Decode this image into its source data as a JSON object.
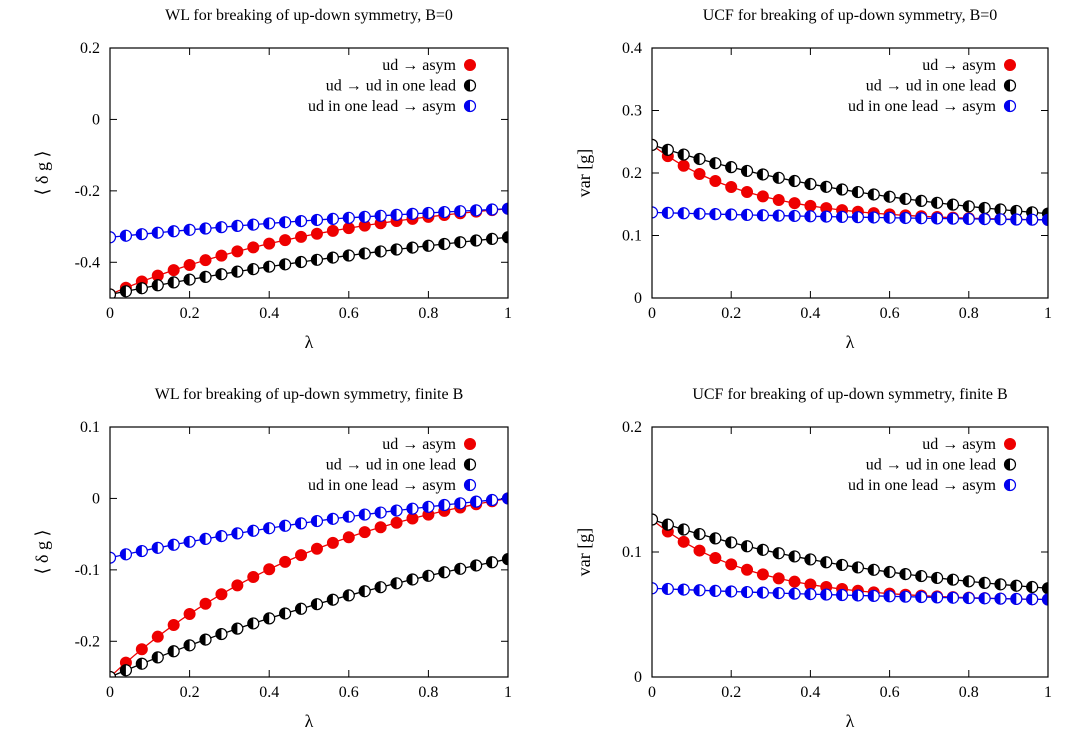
{
  "chart_data": [
    {
      "type": "scatter",
      "title": "WL for breaking of up-down symmetry, B=0",
      "xlabel": "λ",
      "ylabel": "⟨ δ g ⟩",
      "xlim": [
        0,
        1
      ],
      "ylim": [
        -0.5,
        0.2
      ],
      "xticks": [
        "0",
        "0.2",
        "0.4",
        "0.6",
        "0.8",
        "1"
      ],
      "yticks": [
        "-0.4",
        "-0.2",
        "0",
        "0.2"
      ],
      "ytick_values": [
        -0.4,
        -0.2,
        0,
        0.2
      ],
      "grid": false,
      "legend": "top-right",
      "series": [
        {
          "name": "ud → asym",
          "marker": "filled",
          "color": "#ee0000",
          "start": -0.49,
          "end": -0.25,
          "curve": 1.6
        },
        {
          "name": "ud → ud in one lead",
          "marker": "half",
          "color": "#000000",
          "start": -0.49,
          "end": -0.33,
          "curve": 0.7
        },
        {
          "name": "ud in one lead → asym",
          "marker": "half",
          "color": "#0000ee",
          "start": -0.33,
          "end": -0.25,
          "curve": 0.7
        }
      ]
    },
    {
      "type": "scatter",
      "title": "UCF for breaking of up-down symmetry, B=0",
      "xlabel": "λ",
      "ylabel": "var [g]",
      "xlim": [
        0,
        1
      ],
      "ylim": [
        0,
        0.4
      ],
      "xticks": [
        "0",
        "0.2",
        "0.4",
        "0.6",
        "0.8",
        "1"
      ],
      "yticks": [
        "0",
        "0.1",
        "0.2",
        "0.3",
        "0.4"
      ],
      "ytick_values": [
        0,
        0.1,
        0.2,
        0.3,
        0.4
      ],
      "grid": false,
      "legend": "top-right",
      "series": [
        {
          "name": "ud → asym",
          "marker": "filled",
          "color": "#ee0000",
          "start": 0.245,
          "end": 0.125,
          "curve": 4.0
        },
        {
          "name": "ud → ud in one lead",
          "marker": "half",
          "color": "#000000",
          "start": 0.245,
          "end": 0.135,
          "curve": 1.4
        },
        {
          "name": "ud in one lead → asym",
          "marker": "half",
          "color": "#0000ee",
          "start": 0.137,
          "end": 0.125,
          "curve": 1.0
        }
      ]
    },
    {
      "type": "scatter",
      "title": "WL for breaking of up-down symmetry, finite B",
      "xlabel": "λ",
      "ylabel": "⟨ δ g ⟩",
      "xlim": [
        0,
        1
      ],
      "ylim": [
        -0.25,
        0.1
      ],
      "xticks": [
        "0",
        "0.2",
        "0.4",
        "0.6",
        "0.8",
        "1"
      ],
      "yticks": [
        "-0.2",
        "-0.1",
        "0",
        "0.1"
      ],
      "ytick_values": [
        -0.2,
        -0.1,
        0,
        0.1
      ],
      "grid": false,
      "legend": "top-right",
      "series": [
        {
          "name": "ud → asym",
          "marker": "filled",
          "color": "#ee0000",
          "start": -0.25,
          "end": 0.0,
          "curve": 1.7
        },
        {
          "name": "ud → ud in one lead",
          "marker": "half",
          "color": "#000000",
          "start": -0.25,
          "end": -0.085,
          "curve": 0.8
        },
        {
          "name": "ud in one lead → asym",
          "marker": "half",
          "color": "#0000ee",
          "start": -0.083,
          "end": 0.0,
          "curve": 0.8
        }
      ]
    },
    {
      "type": "scatter",
      "title": "UCF for breaking of up-down symmetry, finite B",
      "xlabel": "λ",
      "ylabel": "var [g]",
      "xlim": [
        0,
        1
      ],
      "ylim": [
        0,
        0.2
      ],
      "xticks": [
        "0",
        "0.2",
        "0.4",
        "0.6",
        "0.8",
        "1"
      ],
      "yticks": [
        "0",
        "0.1",
        "0.2"
      ],
      "ytick_values": [
        0,
        0.1,
        0.2
      ],
      "grid": false,
      "legend": "top-right",
      "series": [
        {
          "name": "ud → asym",
          "marker": "filled",
          "color": "#ee0000",
          "start": 0.126,
          "end": 0.062,
          "curve": 4.0
        },
        {
          "name": "ud → ud in one lead",
          "marker": "half",
          "color": "#000000",
          "start": 0.126,
          "end": 0.071,
          "curve": 1.5
        },
        {
          "name": "ud in one lead → asym",
          "marker": "half",
          "color": "#0000ee",
          "start": 0.071,
          "end": 0.062,
          "curve": 1.0
        }
      ]
    }
  ]
}
